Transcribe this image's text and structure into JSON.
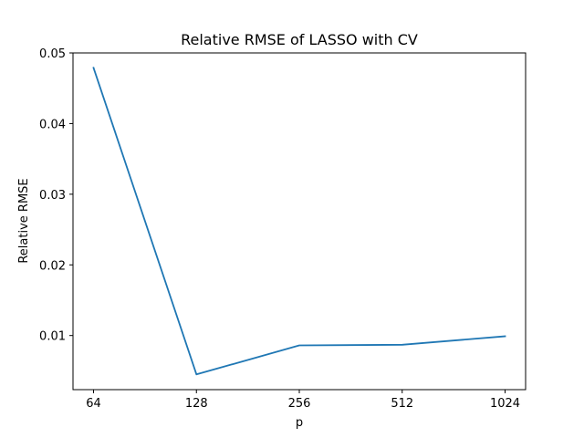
{
  "chart_data": {
    "type": "line",
    "title": "Relative RMSE of LASSO with CV",
    "xlabel": "p",
    "ylabel": "Relative RMSE",
    "categories": [
      "64",
      "128",
      "256",
      "512",
      "1024"
    ],
    "series": [
      {
        "values": [
          0.0479,
          0.0045,
          0.0086,
          0.0087,
          0.0099
        ],
        "color": "#1f77b4"
      }
    ],
    "yticks": [
      0.01,
      0.02,
      0.03,
      0.04,
      0.05
    ],
    "ytick_labels": [
      "0.01",
      "0.02",
      "0.03",
      "0.04",
      "0.05"
    ],
    "ylim": [
      0.00234,
      0.05
    ],
    "grid": false,
    "legend": "none"
  }
}
